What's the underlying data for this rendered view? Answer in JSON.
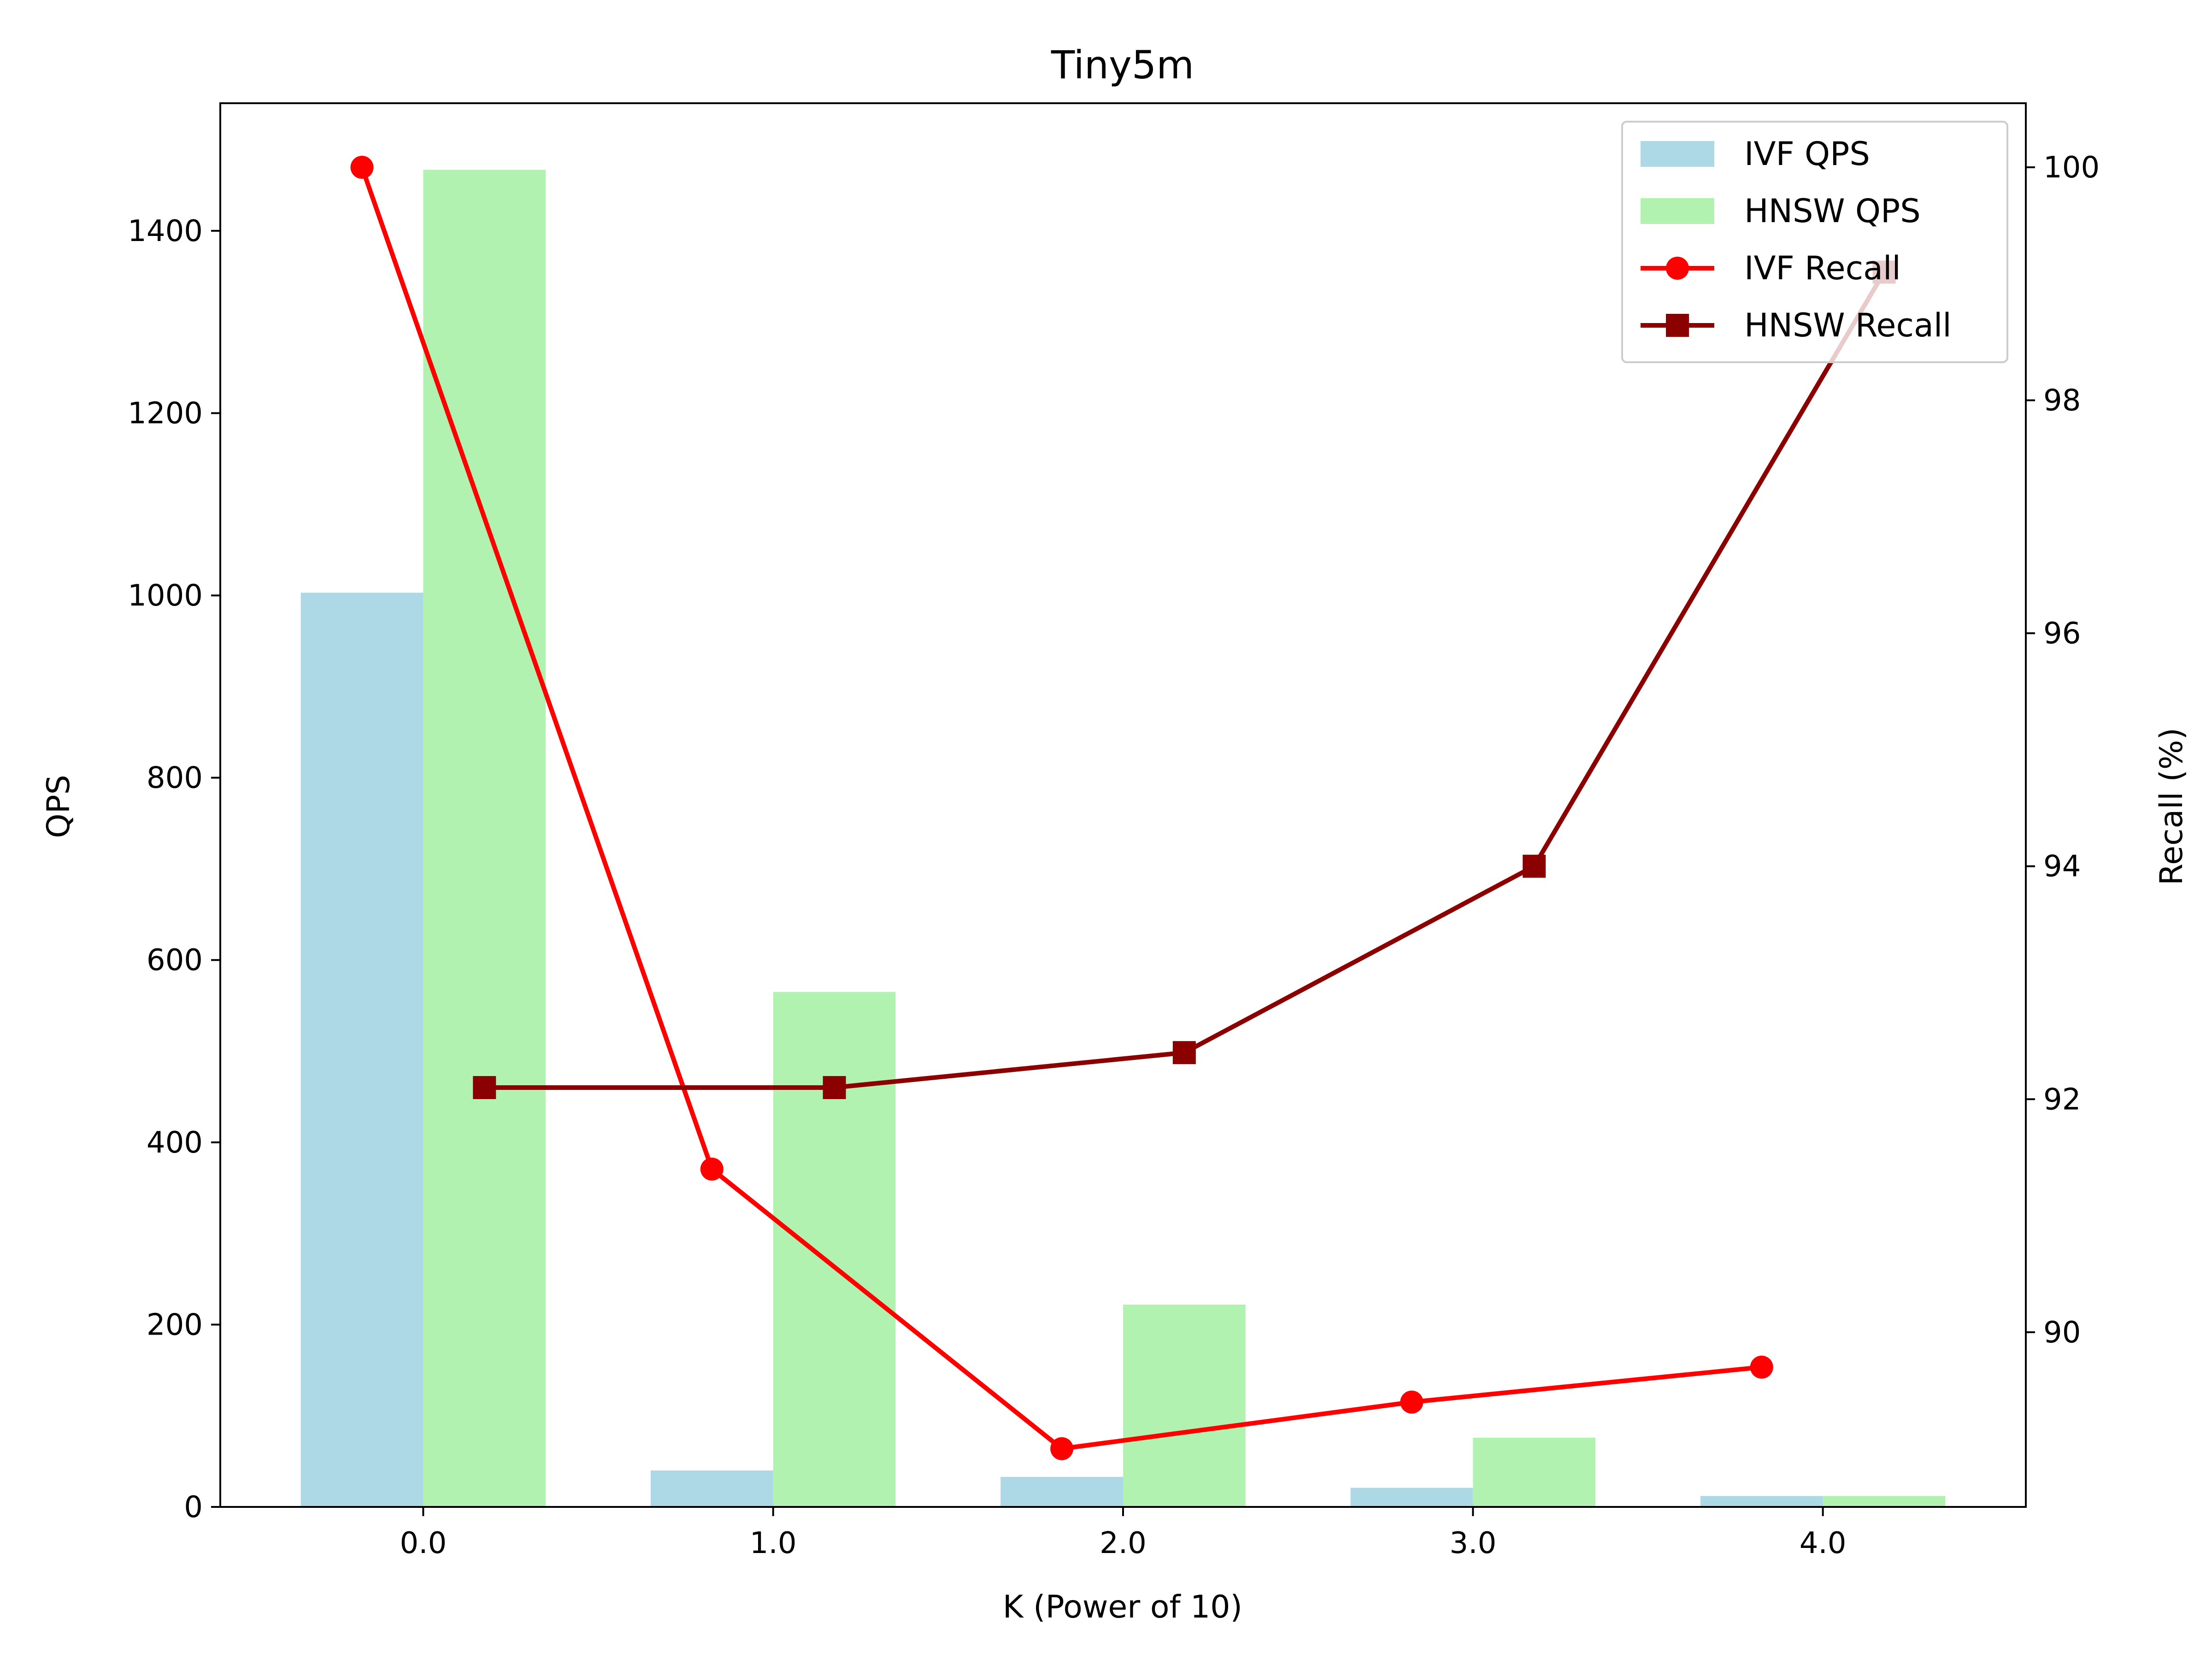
{
  "chart_data": {
    "type": "bar",
    "title": "Tiny5m",
    "xlabel": "K (Power of 10)",
    "ylabel": "QPS",
    "ylabel_right": "Recall (%)",
    "categories": [
      "0.0",
      "1.0",
      "2.0",
      "3.0",
      "4.0"
    ],
    "x": [
      0,
      1,
      2,
      3,
      4
    ],
    "xlim": [
      -0.58,
      4.58
    ],
    "ylim": [
      0,
      1540
    ],
    "ylim_right": [
      88.5,
      100.55
    ],
    "yticks": [
      0,
      200,
      400,
      600,
      800,
      1000,
      1200,
      1400
    ],
    "yticks_right": [
      90,
      92,
      94,
      96,
      98,
      100
    ],
    "series": [
      {
        "name": "IVF QPS",
        "kind": "bar",
        "axis": "left",
        "color": "#add8e6",
        "values": [
          1003,
          40,
          33,
          21,
          12
        ]
      },
      {
        "name": "HNSW QPS",
        "kind": "bar",
        "axis": "left",
        "color": "#b2f2b0",
        "values": [
          1467,
          565,
          222,
          76,
          12
        ]
      },
      {
        "name": "IVF Recall",
        "kind": "line",
        "axis": "right",
        "marker": "circle",
        "color": "#ff0000",
        "x_offset": -0.175,
        "values": [
          100.0,
          91.4,
          89.0,
          89.4,
          89.7
        ]
      },
      {
        "name": "HNSW Recall",
        "kind": "line",
        "axis": "right",
        "marker": "square",
        "color": "#8b0000",
        "x_offset": 0.175,
        "values": [
          92.1,
          92.1,
          92.4,
          94.0,
          99.1
        ]
      }
    ],
    "grid": false,
    "legend_position": "top-right"
  }
}
